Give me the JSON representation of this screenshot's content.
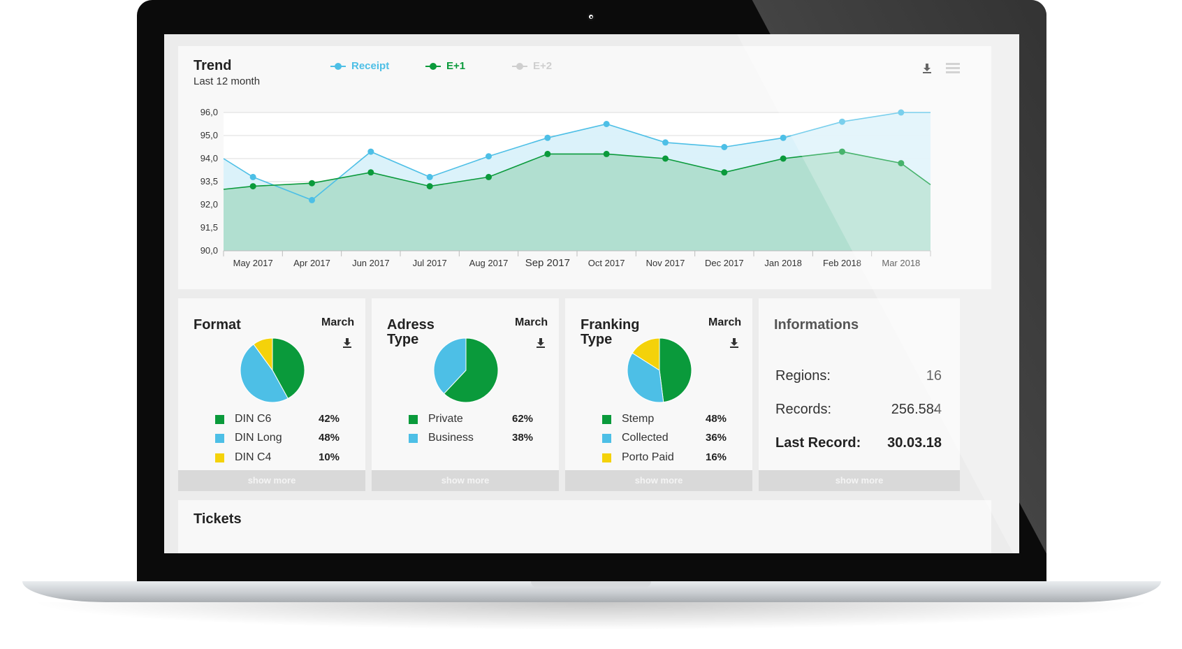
{
  "trend": {
    "title": "Trend",
    "subtitle": "Last 12 month",
    "legend": [
      {
        "label": "Receipt",
        "color": "#4dbfe6"
      },
      {
        "label": "E+1",
        "color": "#0a9a3b"
      },
      {
        "label": "E+2",
        "color": "#cfcfcf"
      }
    ]
  },
  "chart_data": {
    "type": "area",
    "categories": [
      "May 2017",
      "Apr 2017",
      "Jun 2017",
      "Jul 2017",
      "Aug 2017",
      "Sep 2017",
      "Oct 2017",
      "Nov 2017",
      "Dec 2017",
      "Jan 2018",
      "Feb 2018",
      "Mar 2018"
    ],
    "y_tick_labels": [
      "90,0",
      "91,5",
      "92,0",
      "93,5",
      "94,0",
      "95,0",
      "96,0"
    ],
    "series": [
      {
        "name": "Receipt",
        "color": "#4dbfe6",
        "start": 94.0,
        "values": [
          93.6,
          92.3,
          94.3,
          93.6,
          94.1,
          94.9,
          95.5,
          94.7,
          94.5,
          94.9,
          95.6,
          96.0
        ],
        "end": 96.0
      },
      {
        "name": "E+1",
        "color": "#0a9a3b",
        "start": 93.0,
        "values": [
          93.2,
          93.4,
          93.7,
          93.2,
          93.6,
          94.2,
          94.2,
          94.0,
          93.7,
          94.0,
          94.3,
          93.9
        ],
        "end": 93.3
      }
    ],
    "grid": true,
    "legend_position": "top"
  },
  "pies": [
    {
      "title": "Format",
      "month": "March",
      "items": [
        {
          "label": "DIN C6",
          "pct_label": "42%",
          "value": 42,
          "color": "#0a9a3b"
        },
        {
          "label": "DIN Long",
          "pct_label": "48%",
          "value": 48,
          "color": "#4dbfe6"
        },
        {
          "label": "DIN C4",
          "pct_label": "10%",
          "value": 10,
          "color": "#f4d20a"
        }
      ]
    },
    {
      "title": "Adress Type",
      "month": "March",
      "items": [
        {
          "label": "Private",
          "pct_label": "62%",
          "value": 62,
          "color": "#0a9a3b"
        },
        {
          "label": "Business",
          "pct_label": "38%",
          "value": 38,
          "color": "#4dbfe6"
        }
      ]
    },
    {
      "title": "Franking Type",
      "month": "March",
      "items": [
        {
          "label": "Stemp",
          "pct_label": "48%",
          "value": 48,
          "color": "#0a9a3b"
        },
        {
          "label": "Collected",
          "pct_label": "36%",
          "value": 36,
          "color": "#4dbfe6"
        },
        {
          "label": "Porto Paid",
          "pct_label": "16%",
          "value": 16,
          "color": "#f4d20a"
        }
      ]
    }
  ],
  "info": {
    "title": "Informations",
    "rows": [
      {
        "label": "Regions:",
        "value": "16"
      },
      {
        "label": "Records:",
        "value": "256.584"
      },
      {
        "label": "Last Record:",
        "value": "30.03.18"
      }
    ]
  },
  "show_more_label": "show more",
  "tickets": {
    "title": "Tickets"
  }
}
